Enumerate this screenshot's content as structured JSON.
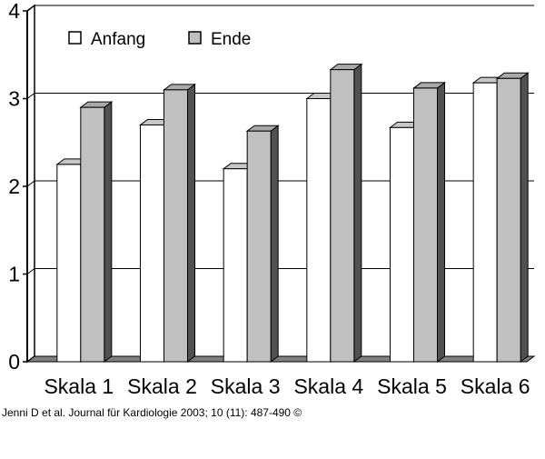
{
  "chart_data": {
    "type": "bar",
    "style": "3d-clustered",
    "title": "",
    "xlabel": "",
    "ylabel": "",
    "ylim": [
      0,
      4
    ],
    "yticks": [
      "0",
      "1",
      "2",
      "3",
      "4"
    ],
    "grid": true,
    "legend_position": "top-left",
    "categories": [
      "Skala 1",
      "Skala 2",
      "Skala 3",
      "Skala 4",
      "Skala 5",
      "Skala 6"
    ],
    "series": [
      {
        "name": "Anfang",
        "color": "#ffffff",
        "values": [
          2.25,
          2.7,
          2.2,
          3.0,
          2.67,
          3.18
        ]
      },
      {
        "name": "Ende",
        "color": "#c0c0c0",
        "values": [
          2.9,
          3.1,
          2.63,
          3.33,
          3.12,
          3.23
        ]
      }
    ]
  },
  "citation": "Jenni D et al. Journal für Kardiologie 2003; 10 (11): 487-490 ©"
}
